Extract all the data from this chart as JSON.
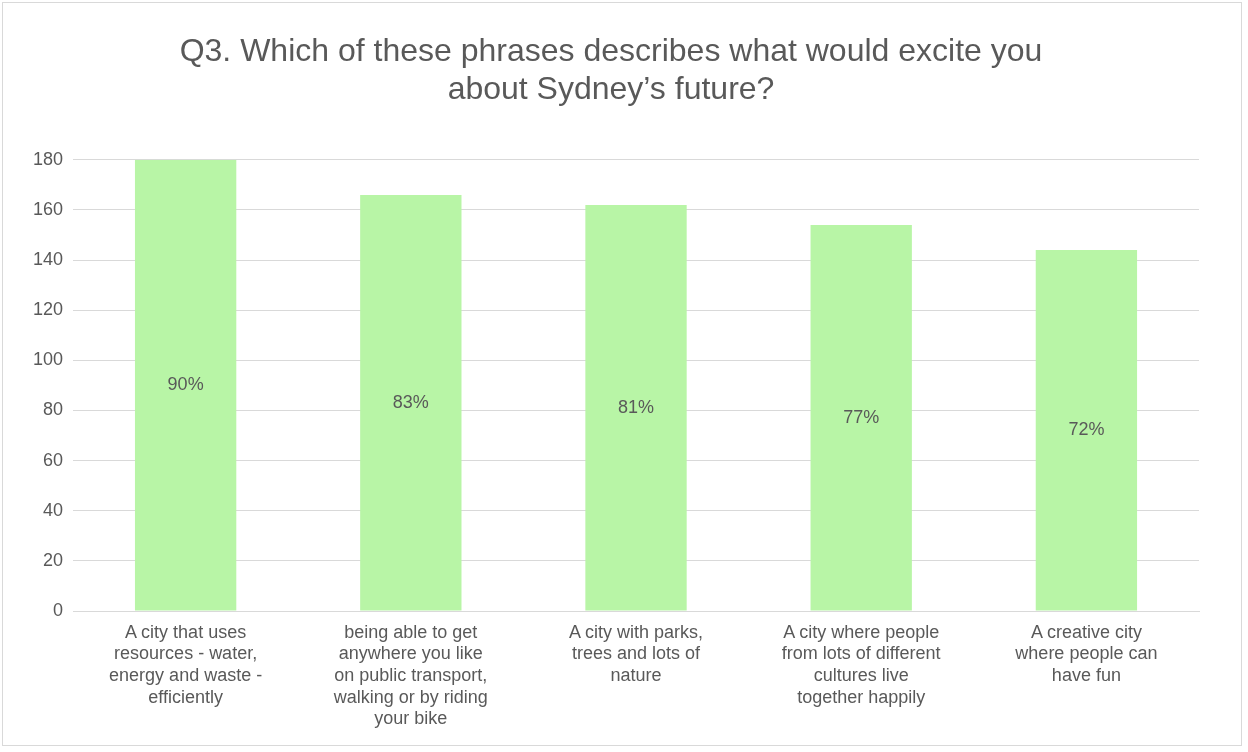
{
  "chart_data": {
    "type": "bar",
    "title": "Q3. Which of these phrases describes what would excite you about Sydney’s future?",
    "categories": [
      "A city that uses resources - water, energy and waste - efficiently",
      "being able to get anywhere you like on public transport, walking or by riding your bike",
      "A city with parks, trees and lots of nature",
      "A city where people from lots of different cultures live together happily",
      "A creative city where people can have fun"
    ],
    "values": [
      180,
      166,
      162,
      154,
      144
    ],
    "annotations": [
      "90%",
      "83%",
      "81%",
      "77%",
      "72%"
    ],
    "color": "#b8f5a6",
    "ylim": [
      0,
      180
    ],
    "yticks": [
      0,
      20,
      40,
      60,
      80,
      100,
      120,
      140,
      160,
      180
    ],
    "grid": "y",
    "legend": false
  }
}
